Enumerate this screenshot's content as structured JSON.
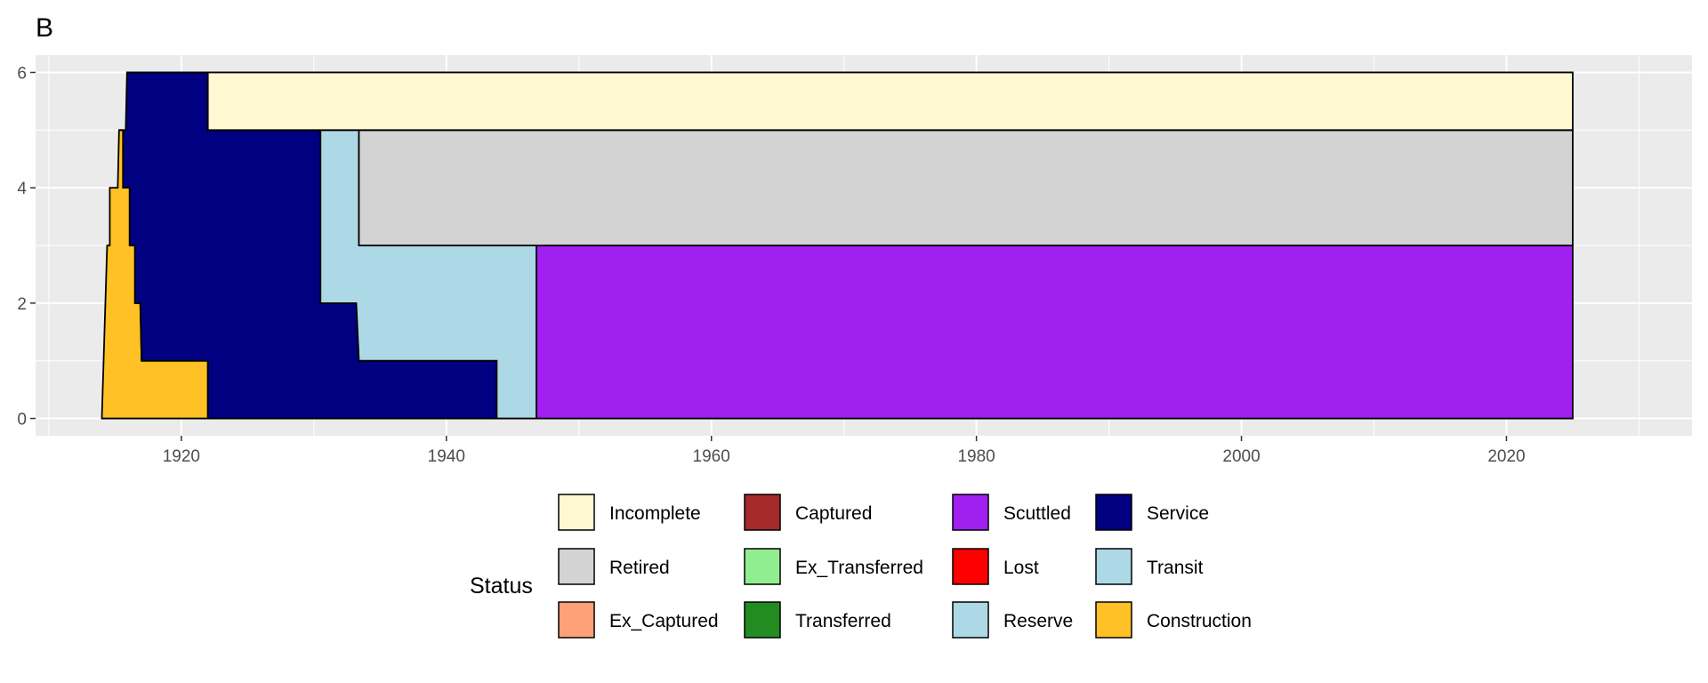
{
  "chart_data": {
    "type": "area",
    "tag": "B",
    "xlim": [
      1909,
      2034
    ],
    "ylim": [
      -0.3,
      6.3
    ],
    "x_ticks": [
      1920,
      1940,
      1960,
      1980,
      2000,
      2020
    ],
    "y_ticks": [
      0,
      2,
      4,
      6
    ],
    "grid": true,
    "legend_position": "bottom",
    "legend_title": "Status",
    "series_order": [
      "Construction",
      "Service",
      "Transit",
      "Scuttled",
      "Retired",
      "Incomplete"
    ],
    "series": [
      {
        "name": "Construction",
        "color": "#FFC125",
        "points": [
          [
            1914.0,
            0
          ],
          [
            1914.0,
            0
          ],
          [
            1914.4,
            3
          ],
          [
            1914.6,
            3
          ],
          [
            1914.6,
            4
          ],
          [
            1915.2,
            4
          ],
          [
            1915.3,
            5
          ],
          [
            1915.6,
            5
          ],
          [
            1915.6,
            4
          ],
          [
            1916.1,
            4
          ],
          [
            1916.1,
            3
          ],
          [
            1916.5,
            3
          ],
          [
            1916.5,
            2
          ],
          [
            1916.9,
            2
          ],
          [
            1917.0,
            1
          ],
          [
            1922.0,
            1
          ],
          [
            1922.0,
            0
          ],
          [
            1922.0,
            0
          ]
        ]
      },
      {
        "name": "Service",
        "color": "#000080",
        "points": [
          [
            1922.0,
            0
          ],
          [
            1922.0,
            0
          ],
          [
            1922.0,
            1
          ],
          [
            1917.0,
            1
          ],
          [
            1916.9,
            2
          ],
          [
            1916.5,
            2
          ],
          [
            1916.5,
            3
          ],
          [
            1916.1,
            3
          ],
          [
            1916.1,
            4
          ],
          [
            1915.6,
            4
          ],
          [
            1915.6,
            5
          ],
          [
            1915.3,
            5
          ],
          [
            1915.3,
            5
          ],
          [
            1915.8,
            5
          ],
          [
            1915.9,
            6
          ],
          [
            1922.0,
            6
          ],
          [
            1922.0,
            5
          ],
          [
            1930.5,
            5
          ],
          [
            1930.5,
            2
          ],
          [
            1933.2,
            2
          ],
          [
            1933.4,
            1
          ],
          [
            1943.8,
            1
          ],
          [
            1943.8,
            0
          ],
          [
            1943.8,
            0
          ]
        ]
      },
      {
        "name": "Transit",
        "color": "#ADD8E6",
        "points": [
          [
            1943.8,
            0
          ],
          [
            1943.8,
            0
          ],
          [
            1943.8,
            1
          ],
          [
            1933.4,
            1
          ],
          [
            1933.2,
            2
          ],
          [
            1930.5,
            2
          ],
          [
            1930.5,
            5
          ],
          [
            1933.4,
            5
          ],
          [
            1933.4,
            3
          ],
          [
            1946.8,
            3
          ],
          [
            1946.8,
            0
          ],
          [
            1946.8,
            0
          ]
        ]
      },
      {
        "name": "Scuttled",
        "color": "#A020F0",
        "points": [
          [
            1946.8,
            0
          ],
          [
            1946.8,
            3
          ],
          [
            2025.0,
            3
          ],
          [
            2025.0,
            0
          ]
        ]
      },
      {
        "name": "Retired",
        "color": "#D3D3D3",
        "points": [
          [
            1933.4,
            3
          ],
          [
            1933.4,
            5
          ],
          [
            2025.0,
            5
          ],
          [
            2025.0,
            3
          ]
        ]
      },
      {
        "name": "Incomplete",
        "color": "#FFF8D0",
        "points": [
          [
            1922.0,
            5
          ],
          [
            1922.0,
            6
          ],
          [
            2025.0,
            6
          ],
          [
            2025.0,
            5
          ]
        ]
      }
    ],
    "legend": [
      {
        "label": "Incomplete",
        "color": "#FFF8D0"
      },
      {
        "label": "Retired",
        "color": "#D3D3D3"
      },
      {
        "label": "Ex_Captured",
        "color": "#FFA07A"
      },
      {
        "label": "Captured",
        "color": "#A52A2A"
      },
      {
        "label": "Ex_Transferred",
        "color": "#90EE90"
      },
      {
        "label": "Transferred",
        "color": "#228B22"
      },
      {
        "label": "Scuttled",
        "color": "#A020F0"
      },
      {
        "label": "Lost",
        "color": "#FF0000"
      },
      {
        "label": "Reserve",
        "color": "#ADD8E6"
      },
      {
        "label": "Service",
        "color": "#000080"
      },
      {
        "label": "Transit",
        "color": "#ADD8E6"
      },
      {
        "label": "Construction",
        "color": "#FFC125"
      }
    ]
  }
}
